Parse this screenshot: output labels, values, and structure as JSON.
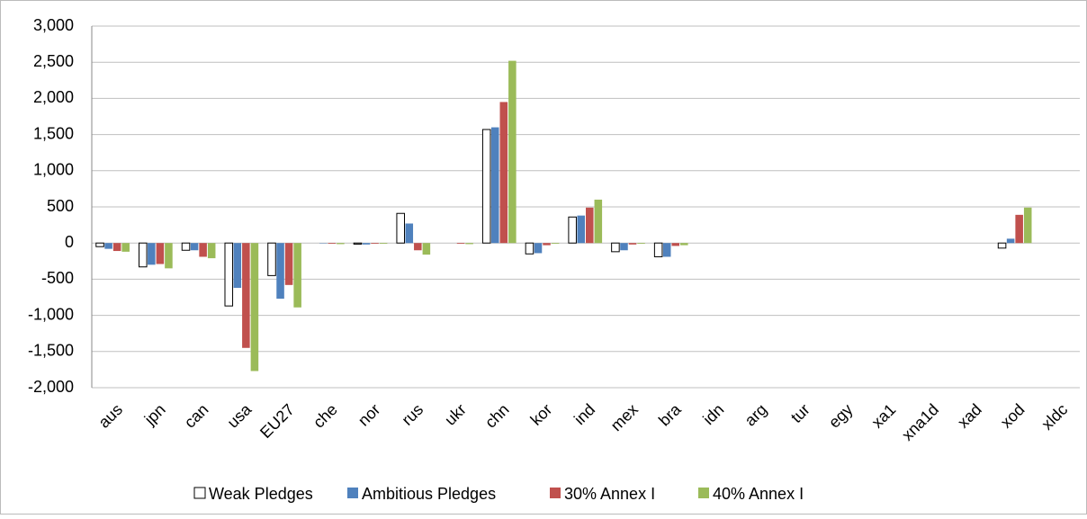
{
  "chart_data": {
    "type": "bar",
    "categories": [
      "aus",
      "jpn",
      "can",
      "usa",
      "EU27",
      "che",
      "nor",
      "rus",
      "ukr",
      "chn",
      "kor",
      "ind",
      "mex",
      "bra",
      "idn",
      "arg",
      "tur",
      "egy",
      "xa1",
      "xna1d",
      "xad",
      "xod",
      "xldc"
    ],
    "series": [
      {
        "name": "Weak Pledges",
        "color": "#ffffff",
        "values": [
          -50,
          -330,
          -100,
          -870,
          -450,
          0,
          -15,
          410,
          0,
          1570,
          -150,
          360,
          -120,
          -190,
          0,
          0,
          0,
          0,
          0,
          0,
          0,
          -70,
          0
        ]
      },
      {
        "name": "Ambitious Pledges",
        "color": "#4f81bd",
        "values": [
          -80,
          -300,
          -100,
          -620,
          -770,
          -5,
          -20,
          270,
          0,
          1600,
          -140,
          380,
          -100,
          -190,
          0,
          0,
          0,
          0,
          0,
          0,
          0,
          60,
          0
        ]
      },
      {
        "name": "30% Annex I",
        "color": "#c0504d",
        "values": [
          -110,
          -290,
          -190,
          -1450,
          -580,
          -10,
          -10,
          -100,
          -10,
          1950,
          -30,
          490,
          -20,
          -40,
          0,
          0,
          0,
          0,
          0,
          0,
          0,
          390,
          0
        ]
      },
      {
        "name": "40% Annex I",
        "color": "#9bbb59",
        "values": [
          -120,
          -350,
          -210,
          -1770,
          -890,
          -15,
          -10,
          -160,
          -15,
          2520,
          -10,
          600,
          -10,
          -30,
          0,
          0,
          0,
          0,
          0,
          0,
          0,
          490,
          0
        ]
      }
    ],
    "ylim": [
      -2000,
      3000
    ],
    "yticks": [
      {
        "value": -2000,
        "label": "-2,000"
      },
      {
        "value": -1500,
        "label": "-1,500"
      },
      {
        "value": -1000,
        "label": "-1,000"
      },
      -500,
      0,
      500,
      {
        "value": 1000,
        "label": "1,000"
      },
      {
        "value": 1500,
        "label": "1,500"
      },
      {
        "value": 2000,
        "label": "2,000"
      },
      {
        "value": 2500,
        "label": "2,500"
      },
      {
        "value": 3000,
        "label": "3,000"
      }
    ],
    "grid": true,
    "legend": "bottom"
  }
}
